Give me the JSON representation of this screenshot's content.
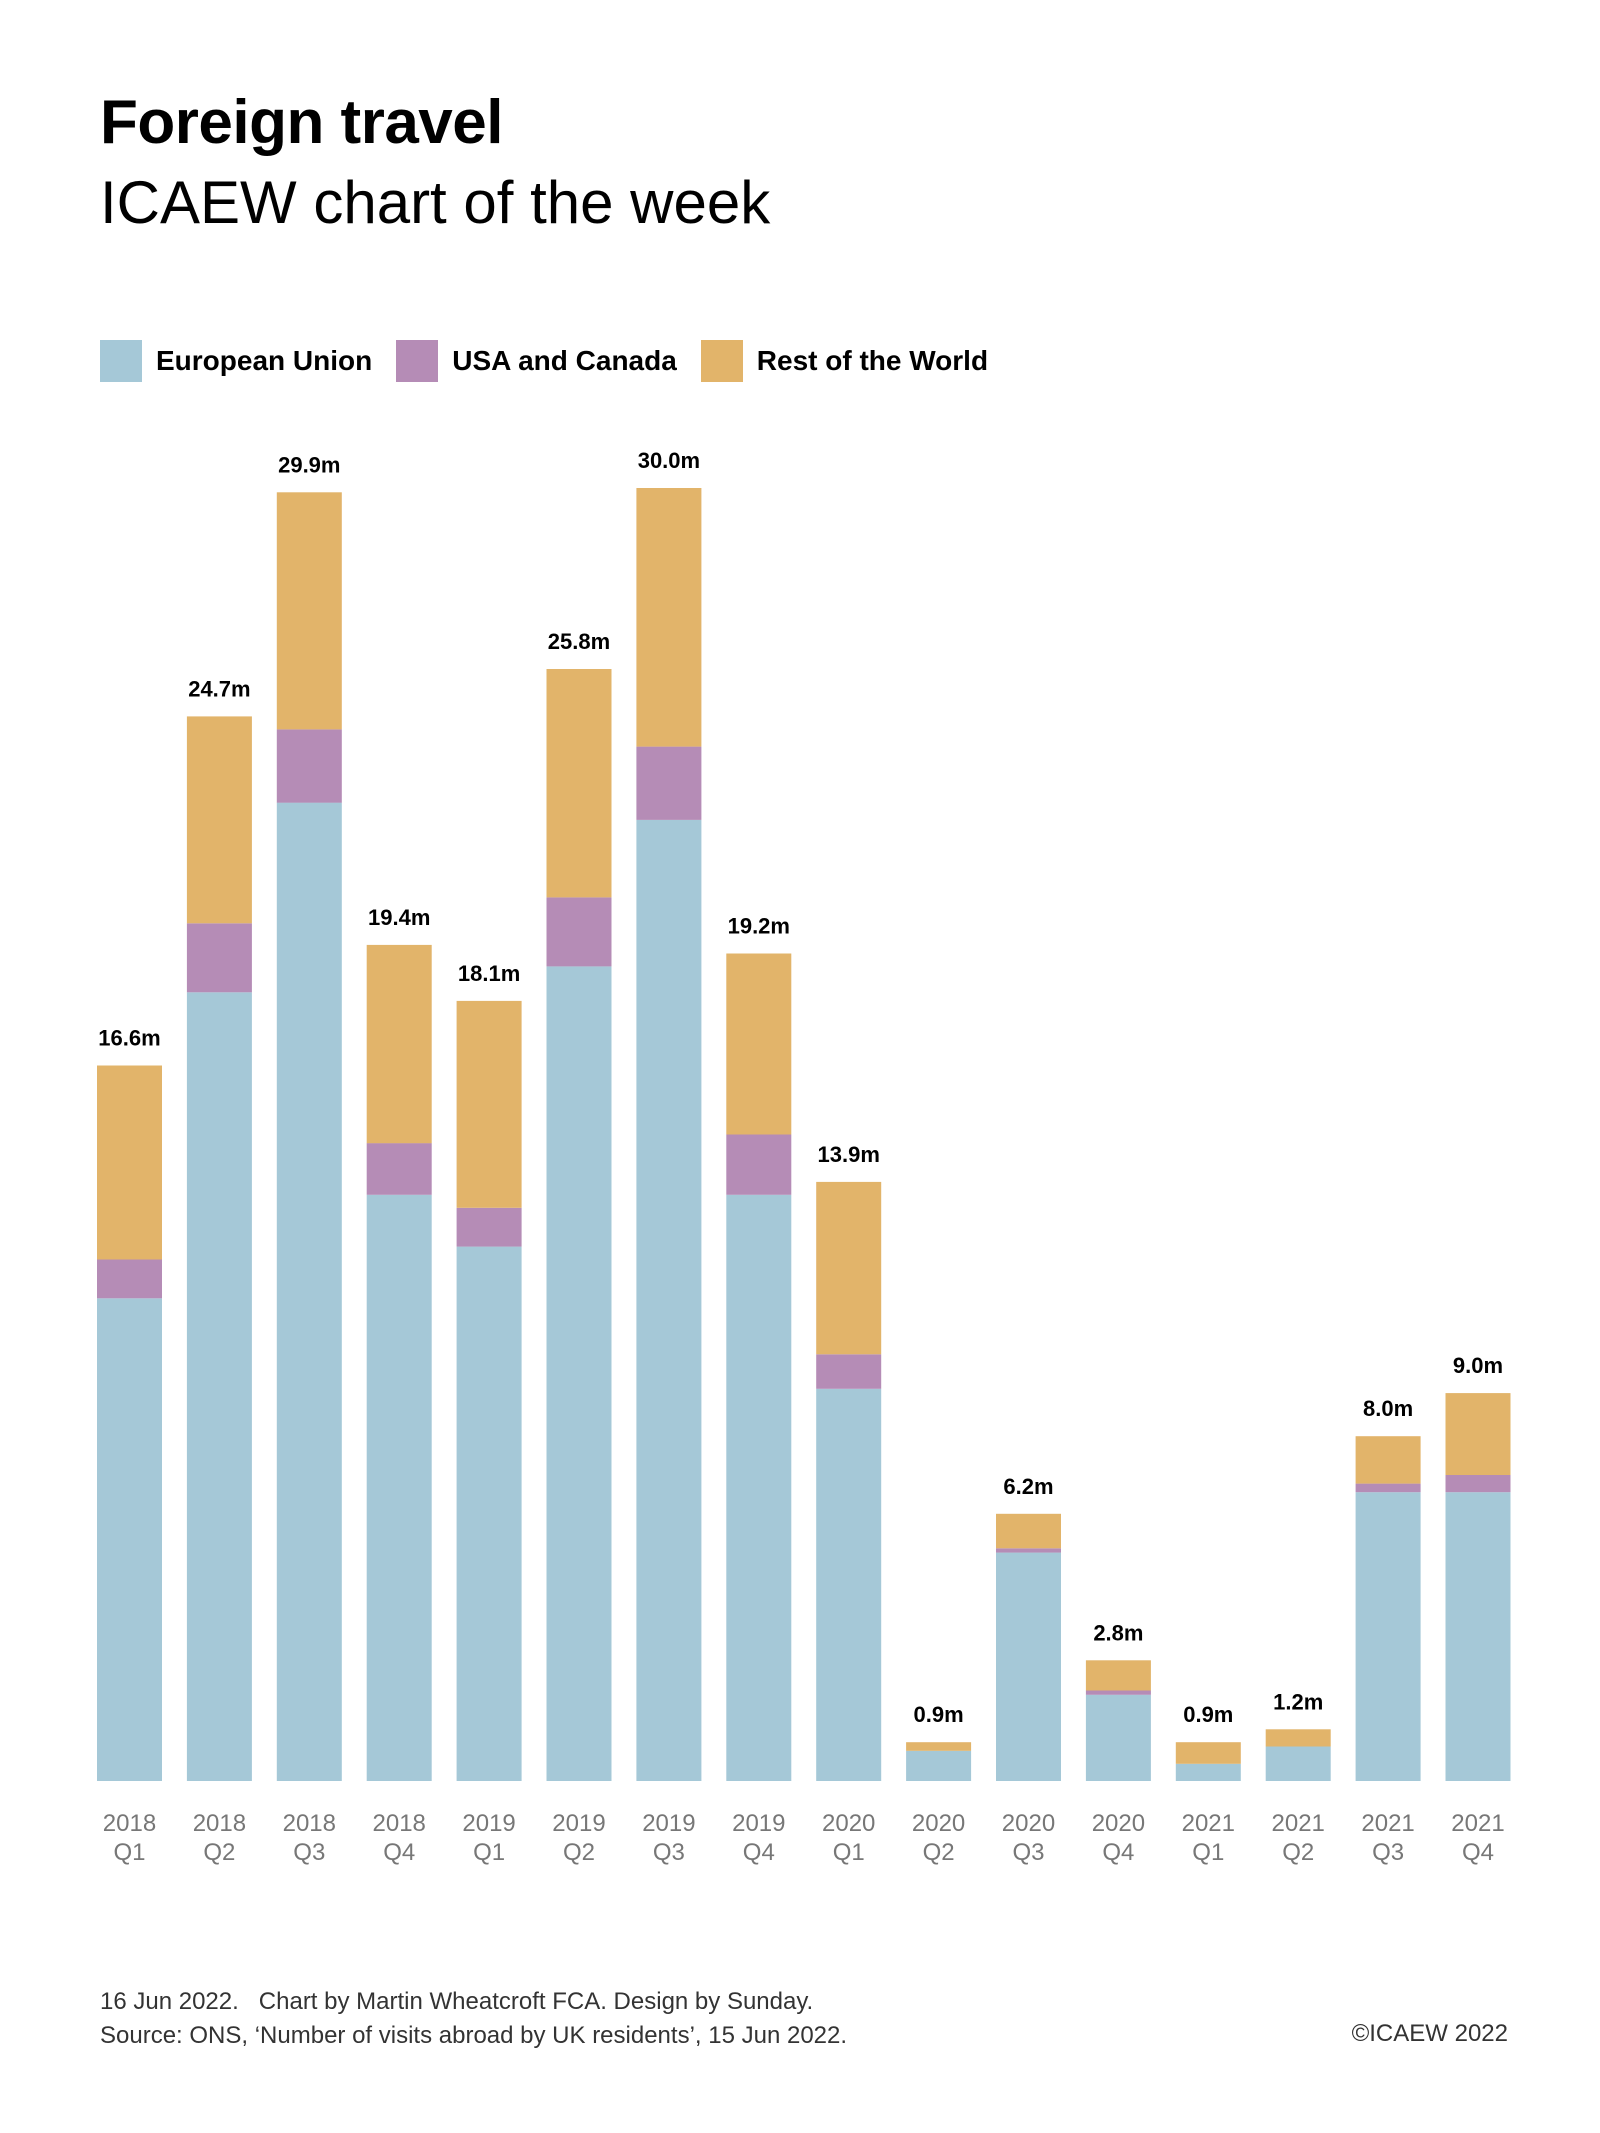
{
  "header": {
    "title": "Foreign travel",
    "subtitle": "ICAEW chart of the week"
  },
  "legend": [
    {
      "label": "European Union",
      "color": "#A5C8D7"
    },
    {
      "label": "USA and Canada",
      "color": "#B58CB6"
    },
    {
      "label": "Rest of the World",
      "color": "#E2B46A"
    }
  ],
  "chart_data": {
    "type": "bar",
    "stacked": true,
    "title": "Foreign travel",
    "subtitle": "ICAEW chart of the week",
    "xlabel": "",
    "ylabel": "",
    "unit": "m",
    "grid": false,
    "legend_position": "top-left",
    "ylim": [
      0,
      30
    ],
    "categories": [
      [
        "2018",
        "Q1"
      ],
      [
        "2018",
        "Q2"
      ],
      [
        "2018",
        "Q3"
      ],
      [
        "2018",
        "Q4"
      ],
      [
        "2019",
        "Q1"
      ],
      [
        "2019",
        "Q2"
      ],
      [
        "2019",
        "Q3"
      ],
      [
        "2019",
        "Q4"
      ],
      [
        "2020",
        "Q1"
      ],
      [
        "2020",
        "Q2"
      ],
      [
        "2020",
        "Q3"
      ],
      [
        "2020",
        "Q4"
      ],
      [
        "2021",
        "Q1"
      ],
      [
        "2021",
        "Q2"
      ],
      [
        "2021",
        "Q3"
      ],
      [
        "2021",
        "Q4"
      ]
    ],
    "series": [
      {
        "name": "European Union",
        "color": "#A5C8D7",
        "values": [
          11.2,
          18.3,
          22.7,
          13.6,
          12.4,
          18.9,
          22.3,
          13.6,
          9.1,
          0.7,
          5.3,
          2.0,
          0.4,
          0.8,
          6.7,
          6.7
        ]
      },
      {
        "name": "USA and Canada",
        "color": "#B58CB6",
        "values": [
          0.9,
          1.6,
          1.7,
          1.2,
          0.9,
          1.6,
          1.7,
          1.4,
          0.8,
          0.0,
          0.1,
          0.1,
          0.0,
          0.0,
          0.2,
          0.4
        ]
      },
      {
        "name": "Rest of the World",
        "color": "#E2B46A",
        "values": [
          4.5,
          4.8,
          5.5,
          4.6,
          4.8,
          5.3,
          6.0,
          4.2,
          4.0,
          0.2,
          0.8,
          0.7,
          0.5,
          0.4,
          1.1,
          1.9
        ]
      }
    ],
    "totals": [
      16.6,
      24.7,
      29.9,
      19.4,
      18.1,
      25.8,
      30.0,
      19.2,
      13.9,
      0.9,
      6.2,
      2.8,
      0.9,
      1.2,
      8.0,
      9.0
    ],
    "total_labels": [
      "16.6m",
      "24.7m",
      "29.9m",
      "19.4m",
      "18.1m",
      "25.8m",
      "30.0m",
      "19.2m",
      "13.9m",
      "0.9m",
      "6.2m",
      "2.8m",
      "0.9m",
      "1.2m",
      "8.0m",
      "9.0m"
    ]
  },
  "footer": {
    "line1": "16 Jun 2022.   Chart by Martin Wheatcroft FCA. Design by Sunday.",
    "line2": "Source: ONS, ‘Number of visits abroad by UK residents’, 15 Jun 2022.",
    "copyright": "©ICAEW 2022"
  }
}
